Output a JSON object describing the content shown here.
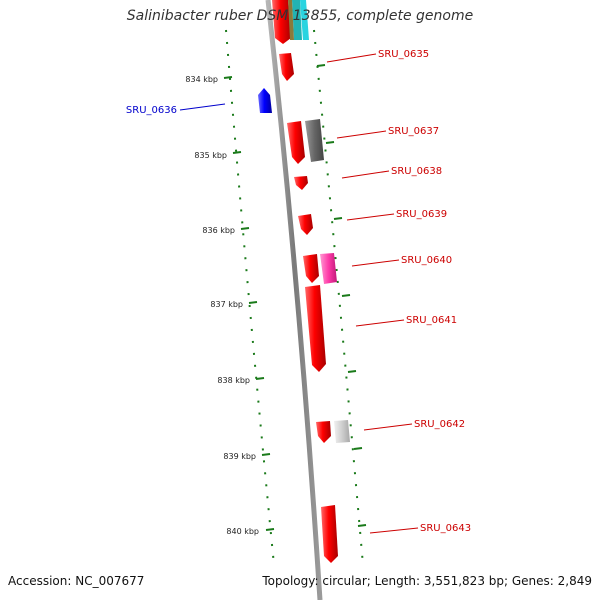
{
  "title": "Salinibacter ruber DSM 13855, complete genome",
  "footer": {
    "accession": "Accession: NC_007677",
    "stats": "Topology: circular; Length: 3,551,823 bp; Genes: 2,849"
  },
  "colors": {
    "forward_gene": "#ff0000",
    "reverse_gene": "#0000ff",
    "label_forward": "#cc0000",
    "label_reverse": "#0000cc",
    "backbone": "#888888",
    "dots": "#1a7a1a"
  },
  "scale_ticks": [
    {
      "label": "834 kbp"
    },
    {
      "label": "835 kbp"
    },
    {
      "label": "836 kbp"
    },
    {
      "label": "837 kbp"
    },
    {
      "label": "838 kbp"
    },
    {
      "label": "839 kbp"
    },
    {
      "label": "840 kbp"
    }
  ],
  "genes": [
    {
      "id": "SRU_0635",
      "strand": "forward"
    },
    {
      "id": "SRU_0636",
      "strand": "reverse"
    },
    {
      "id": "SRU_0637",
      "strand": "forward"
    },
    {
      "id": "SRU_0638",
      "strand": "forward"
    },
    {
      "id": "SRU_0639",
      "strand": "forward"
    },
    {
      "id": "SRU_0640",
      "strand": "forward"
    },
    {
      "id": "SRU_0641",
      "strand": "forward"
    },
    {
      "id": "SRU_0642",
      "strand": "forward"
    },
    {
      "id": "SRU_0643",
      "strand": "forward"
    }
  ]
}
